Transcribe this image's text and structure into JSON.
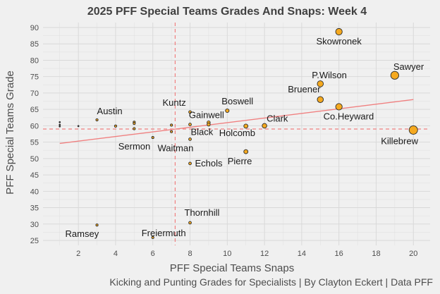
{
  "chart_data": {
    "type": "scatter",
    "title": "2025 PFF Special Teams Grades And Snaps: Week 4",
    "xlabel": "PFF Special Teams Snaps",
    "ylabel": "PFF Special Teams Grade",
    "caption": "Kicking and Punting Grades for Specialists | By Clayton Eckert | Data PFF",
    "xlim": [
      0.1,
      20.9
    ],
    "ylim": [
      23.5,
      91.5
    ],
    "xticks": [
      2,
      4,
      6,
      8,
      10,
      12,
      14,
      16,
      18,
      20
    ],
    "yticks": [
      25,
      30,
      35,
      40,
      45,
      50,
      55,
      60,
      65,
      70,
      75,
      80,
      85,
      90
    ],
    "grid": true,
    "colors": {
      "point_fill": "#f5a91f",
      "point_stroke": "#2b2b2b",
      "trend": "#f08080",
      "ref_lines": "#f08080",
      "background": "#f0f0f0",
      "grid": "#d9d9d9"
    },
    "ref_lines": {
      "x": 7.2,
      "y": 59.0
    },
    "trend": {
      "x1": 1,
      "y1": 54.6,
      "x2": 20,
      "y2": 68.0
    },
    "points": [
      {
        "name": "Skowronek",
        "x": 16,
        "y": 88.7
      },
      {
        "name": "Sawyer",
        "x": 19,
        "y": 75.4
      },
      {
        "name": "P.Wilson",
        "x": 15,
        "y": 72.8
      },
      {
        "name": "Bruener",
        "x": 15,
        "y": 68.0
      },
      {
        "name": "Co.Heyward",
        "x": 16,
        "y": 65.8
      },
      {
        "name": "Killebrew",
        "x": 20,
        "y": 58.7
      },
      {
        "name": "Boswell",
        "x": 10,
        "y": 64.6
      },
      {
        "name": "Kuntz",
        "x": 8,
        "y": 64.2
      },
      {
        "name": "Gainwell",
        "x": 9,
        "y": 61.0
      },
      {
        "name": "Clark",
        "x": 12,
        "y": 60.0
      },
      {
        "name": "Holcomb",
        "x": 11,
        "y": 59.9
      },
      {
        "name": "Black",
        "x": 8,
        "y": 60.4
      },
      {
        "name": "Austin",
        "x": 3,
        "y": 61.8
      },
      {
        "name": "Sermon",
        "x": 6,
        "y": 56.4
      },
      {
        "name": "Waitman",
        "x": 8,
        "y": 55.9
      },
      {
        "name": "Pierre",
        "x": 11,
        "y": 52.1
      },
      {
        "name": "Echols",
        "x": 8,
        "y": 48.5
      },
      {
        "name": "Thornhill",
        "x": 8,
        "y": 30.4
      },
      {
        "name": "Ramsey",
        "x": 3,
        "y": 29.7
      },
      {
        "name": "Freiermuth",
        "x": 6,
        "y": 25.9
      },
      {
        "name": "",
        "x": 1,
        "y": 61.1
      },
      {
        "name": "",
        "x": 1,
        "y": 60.3
      },
      {
        "name": "",
        "x": 1,
        "y": 59.8
      },
      {
        "name": "",
        "x": 2,
        "y": 59.9
      },
      {
        "name": "",
        "x": 4,
        "y": 59.9
      },
      {
        "name": "",
        "x": 5,
        "y": 61.1
      },
      {
        "name": "",
        "x": 5,
        "y": 60.7
      },
      {
        "name": "",
        "x": 5,
        "y": 59.1
      },
      {
        "name": "",
        "x": 7,
        "y": 60.2
      },
      {
        "name": "",
        "x": 7,
        "y": 58.2
      },
      {
        "name": "",
        "x": 9,
        "y": 60.4
      }
    ]
  }
}
